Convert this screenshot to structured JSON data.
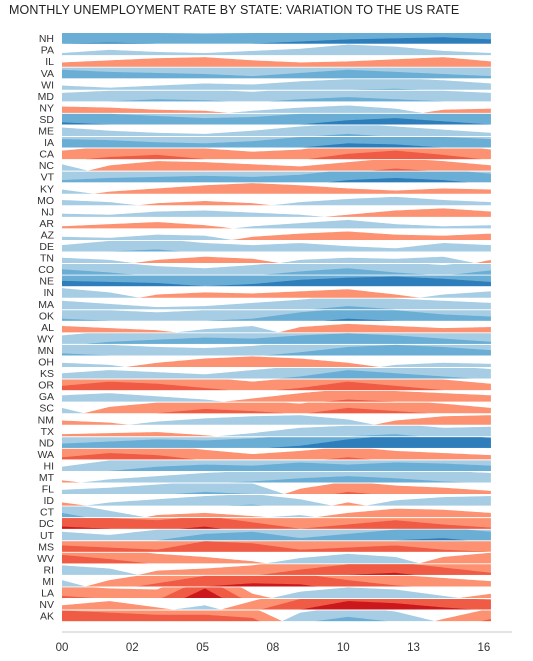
{
  "chart_data": {
    "type": "horizon",
    "title": "MONTHLY UNEMPLOYMENT RATE BY STATE: VARIATION TO THE US RATE",
    "x_ticks": [
      "00",
      "02",
      "05",
      "08",
      "10",
      "13",
      "16"
    ],
    "x_tick_years": [
      2000,
      2002.5,
      2005,
      2007.5,
      2010,
      2012.5,
      2015
    ],
    "xlim": [
      2000,
      2016
    ],
    "data_xlim": [
      2000,
      2015.25
    ],
    "band_unit_pct_points": 1,
    "colors": {
      "below_us": [
        "#a6cde3",
        "#6aaed6",
        "#2e7ebc"
      ],
      "above_us": [
        "#fc9272",
        "#ef5b45",
        "#cb181d"
      ]
    },
    "series": [
      {
        "name": "NH",
        "values": [
          -2.0,
          -2.1,
          -2.0,
          -1.9,
          -2.0,
          -2.2,
          -2.4,
          -2.5,
          -2.6,
          -2.4
        ]
      },
      {
        "name": "PA",
        "values": [
          -0.2,
          -0.5,
          -0.3,
          -0.2,
          -0.4,
          -0.6,
          -1.0,
          -0.8,
          -0.4,
          -0.2
        ]
      },
      {
        "name": "IL",
        "values": [
          0.4,
          0.6,
          0.8,
          0.9,
          0.6,
          0.4,
          0.5,
          0.7,
          0.9,
          0.5
        ]
      },
      {
        "name": "VA",
        "values": [
          -1.8,
          -1.6,
          -1.5,
          -1.4,
          -1.2,
          -1.5,
          -1.8,
          -1.6,
          -1.4,
          -1.2
        ]
      },
      {
        "name": "WI",
        "values": [
          -0.4,
          -0.2,
          -0.4,
          -0.6,
          -0.5,
          -0.8,
          -1.0,
          -1.1,
          -0.9,
          -0.6
        ]
      },
      {
        "name": "MD",
        "values": [
          -0.8,
          -1.0,
          -1.2,
          -1.1,
          -0.9,
          -1.2,
          -1.4,
          -1.2,
          -1.0,
          -0.8
        ]
      },
      {
        "name": "NY",
        "values": [
          0.6,
          0.5,
          0.3,
          0.2,
          -0.2,
          -0.5,
          -0.7,
          -0.4,
          0.3,
          0.4
        ]
      },
      {
        "name": "SD",
        "values": [
          -2.2,
          -2.0,
          -1.8,
          -1.6,
          -1.7,
          -2.0,
          -2.4,
          -2.6,
          -2.3,
          -2.0
        ]
      },
      {
        "name": "ME",
        "values": [
          -0.8,
          -0.5,
          -0.3,
          -0.2,
          -0.5,
          -0.9,
          -1.2,
          -0.9,
          -0.6,
          -0.3
        ]
      },
      {
        "name": "IA",
        "values": [
          -1.8,
          -1.7,
          -1.5,
          -1.4,
          -1.6,
          -2.0,
          -2.4,
          -2.3,
          -2.0,
          -1.8
        ]
      },
      {
        "name": "CA",
        "values": [
          0.8,
          1.2,
          1.4,
          1.0,
          0.7,
          0.9,
          1.5,
          1.8,
          1.4,
          0.9
        ]
      },
      {
        "name": "NC",
        "values": [
          -0.6,
          0.5,
          0.9,
          0.8,
          0.6,
          0.4,
          0.8,
          1.2,
          0.9,
          0.5
        ]
      },
      {
        "name": "VT",
        "values": [
          -1.2,
          -1.4,
          -1.5,
          -1.6,
          -1.5,
          -1.7,
          -2.2,
          -2.4,
          -2.2,
          -1.8
        ]
      },
      {
        "name": "KY",
        "values": [
          -0.4,
          0.2,
          0.5,
          0.8,
          1.0,
          0.8,
          0.5,
          0.3,
          0.5,
          0.4
        ]
      },
      {
        "name": "MO",
        "values": [
          -0.5,
          -0.3,
          0.2,
          0.4,
          0.2,
          -0.3,
          -0.6,
          -0.8,
          -0.5,
          -0.3
        ]
      },
      {
        "name": "NJ",
        "values": [
          -0.3,
          -0.2,
          -0.5,
          -0.6,
          -0.4,
          -0.2,
          0.2,
          0.6,
          0.8,
          0.5
        ]
      },
      {
        "name": "AR",
        "values": [
          0.2,
          0.4,
          0.6,
          0.3,
          -0.2,
          -0.5,
          -0.8,
          -0.4,
          -0.2,
          -0.3
        ]
      },
      {
        "name": "AZ",
        "values": [
          -0.3,
          -0.2,
          -0.5,
          -0.4,
          0.3,
          0.6,
          0.8,
          0.5,
          0.4,
          0.6
        ]
      },
      {
        "name": "DE",
        "values": [
          -0.6,
          -1.0,
          -1.2,
          -0.8,
          -0.6,
          -0.8,
          -0.5,
          -0.3,
          -0.8,
          -0.6
        ]
      },
      {
        "name": "TN",
        "values": [
          -0.5,
          -0.3,
          0.3,
          0.6,
          0.4,
          -0.3,
          -0.5,
          -0.4,
          -0.6,
          0.3
        ]
      },
      {
        "name": "CO",
        "values": [
          -1.5,
          -1.2,
          -0.8,
          -0.6,
          -0.9,
          -1.3,
          -1.6,
          -1.2,
          -0.9,
          -1.4
        ]
      },
      {
        "name": "NE",
        "values": [
          -2.5,
          -2.4,
          -2.3,
          -2.0,
          -2.2,
          -2.6,
          -2.8,
          -2.9,
          -2.7,
          -2.4
        ]
      },
      {
        "name": "IN",
        "values": [
          -0.9,
          -0.5,
          0.3,
          0.5,
          0.4,
          0.6,
          0.8,
          0.3,
          -0.3,
          -0.6
        ]
      },
      {
        "name": "MA",
        "values": [
          -0.8,
          -0.5,
          -0.2,
          -0.3,
          -0.6,
          -0.9,
          -1.3,
          -1.0,
          -0.8,
          -0.6
        ]
      },
      {
        "name": "OK",
        "values": [
          -1.2,
          -1.0,
          -0.8,
          -1.0,
          -1.2,
          -1.8,
          -2.2,
          -2.0,
          -1.6,
          -1.4
        ]
      },
      {
        "name": "AL",
        "values": [
          0.6,
          0.4,
          0.2,
          -0.3,
          -0.6,
          0.5,
          0.8,
          0.6,
          0.4,
          0.5
        ]
      },
      {
        "name": "WY",
        "values": [
          -0.8,
          -1.2,
          -1.4,
          -1.6,
          -1.5,
          -1.8,
          -2.0,
          -1.8,
          -1.5,
          -1.2
        ]
      },
      {
        "name": "MN",
        "values": [
          -1.2,
          -1.0,
          -0.8,
          -0.7,
          -0.9,
          -1.3,
          -1.8,
          -2.0,
          -1.8,
          -1.5
        ]
      },
      {
        "name": "OH",
        "values": [
          -0.4,
          -0.2,
          0.4,
          0.8,
          1.0,
          0.8,
          0.4,
          -0.2,
          -0.4,
          -0.3
        ]
      },
      {
        "name": "KS",
        "values": [
          -0.5,
          -0.8,
          -0.6,
          -0.4,
          -0.8,
          -1.2,
          -1.8,
          -1.5,
          -1.2,
          -0.9
        ]
      },
      {
        "name": "OR",
        "values": [
          1.4,
          1.8,
          1.6,
          1.2,
          0.8,
          1.2,
          1.8,
          1.4,
          1.0,
          0.6
        ]
      },
      {
        "name": "GA",
        "values": [
          -0.6,
          -0.8,
          -0.5,
          -0.2,
          0.3,
          0.8,
          1.2,
          1.0,
          0.8,
          0.6
        ]
      },
      {
        "name": "SC",
        "values": [
          -0.5,
          0.6,
          1.0,
          1.4,
          1.2,
          0.9,
          1.5,
          1.2,
          0.9,
          0.5
        ]
      },
      {
        "name": "NM",
        "values": [
          0.4,
          0.2,
          -0.3,
          -0.6,
          -0.8,
          -0.9,
          -0.5,
          0.4,
          0.8,
          0.9
        ]
      },
      {
        "name": "TX",
        "values": [
          0.2,
          0.3,
          0.4,
          0.1,
          -0.3,
          -0.8,
          -1.0,
          -1.2,
          -0.8,
          -0.9
        ]
      },
      {
        "name": "ND",
        "values": [
          -1.4,
          -1.6,
          -1.8,
          -1.7,
          -1.9,
          -2.2,
          -2.8,
          -3.2,
          -3.4,
          -2.9
        ]
      },
      {
        "name": "WA",
        "values": [
          1.2,
          1.6,
          1.4,
          0.9,
          0.5,
          0.8,
          1.2,
          0.8,
          0.6,
          0.4
        ]
      },
      {
        "name": "HI",
        "values": [
          -0.4,
          -1.0,
          -1.4,
          -1.6,
          -1.5,
          -1.8,
          -1.6,
          -1.8,
          -1.7,
          -1.5
        ]
      },
      {
        "name": "MT",
        "values": [
          0.2,
          -0.3,
          -0.6,
          -0.9,
          -1.1,
          -1.4,
          -1.6,
          -1.4,
          -1.1,
          -0.9
        ]
      },
      {
        "name": "FL",
        "values": [
          -0.4,
          -0.6,
          -0.9,
          -1.2,
          -1.0,
          0.5,
          1.2,
          0.8,
          0.6,
          0.3
        ]
      },
      {
        "name": "ID",
        "values": [
          0.3,
          -0.3,
          -0.6,
          -0.9,
          -1.1,
          -0.6,
          0.3,
          -0.5,
          -0.8,
          -0.9
        ]
      },
      {
        "name": "CT",
        "values": [
          -1.4,
          -0.6,
          0.2,
          0.4,
          0.1,
          -0.2,
          0.4,
          0.8,
          0.7,
          0.4
        ]
      },
      {
        "name": "DC",
        "values": [
          2.2,
          2.0,
          1.8,
          2.2,
          1.6,
          1.0,
          1.4,
          1.8,
          1.4,
          1.1
        ]
      },
      {
        "name": "UT",
        "values": [
          -0.8,
          -0.5,
          -1.0,
          -1.6,
          -1.8,
          -1.2,
          -1.6,
          -2.0,
          -2.2,
          -1.8
        ]
      },
      {
        "name": "MS",
        "values": [
          1.6,
          1.4,
          1.2,
          2.0,
          1.8,
          1.2,
          1.4,
          1.6,
          1.2,
          1.0
        ]
      },
      {
        "name": "WV",
        "values": [
          1.8,
          1.4,
          0.9,
          0.6,
          0.2,
          -0.5,
          -0.9,
          -0.6,
          0.6,
          1.0
        ]
      },
      {
        "name": "RI",
        "values": [
          -0.9,
          -0.6,
          0.4,
          0.6,
          0.9,
          1.5,
          2.0,
          2.2,
          1.7,
          1.2
        ]
      },
      {
        "name": "MI",
        "values": [
          -0.6,
          0.6,
          1.3,
          2.0,
          2.3,
          2.2,
          1.6,
          1.1,
          0.8,
          0.5
        ]
      },
      {
        "name": "LA",
        "values": [
          1.2,
          0.9,
          0.8,
          2.9,
          0.4,
          -0.6,
          -1.0,
          -0.8,
          -0.2,
          0.4
        ]
      },
      {
        "name": "NV",
        "values": [
          0.4,
          0.8,
          0.2,
          -0.4,
          0.8,
          2.0,
          2.8,
          2.6,
          2.2,
          1.9
        ]
      },
      {
        "name": "AK",
        "values": [
          2.0,
          1.8,
          1.6,
          1.6,
          1.3,
          -0.8,
          -1.4,
          -0.9,
          0.2,
          1.2
        ]
      }
    ]
  }
}
